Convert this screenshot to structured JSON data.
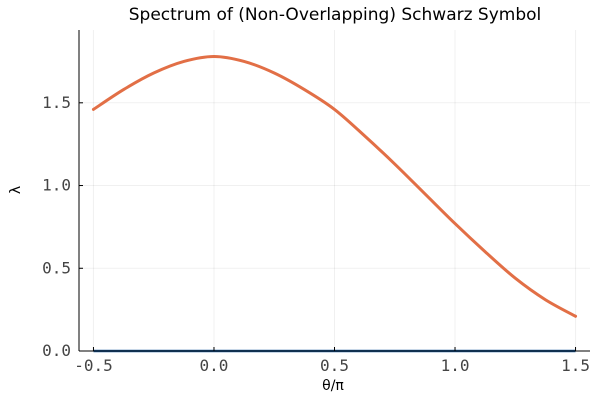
{
  "chart_data": {
    "type": "line",
    "title": "Spectrum of (Non-Overlapping) Schwarz Symbol",
    "xlabel": "θ/π",
    "ylabel": "λ",
    "xlim": [
      -0.56,
      1.56
    ],
    "ylim": [
      0.0,
      1.94
    ],
    "xticks": [
      -0.5,
      0.0,
      0.5,
      1.0,
      1.5
    ],
    "xtick_labels": [
      "-0.5",
      "0.0",
      "0.5",
      "1.0",
      "1.5"
    ],
    "yticks": [
      0.0,
      0.5,
      1.0,
      1.5
    ],
    "ytick_labels": [
      "0.0",
      "0.5",
      "1.0",
      "1.5"
    ],
    "grid": true,
    "legend": "none",
    "series": [
      {
        "color": "#e26f46",
        "x": [
          -0.5,
          -0.375,
          -0.25,
          -0.125,
          0.0,
          0.125,
          0.25,
          0.375,
          0.5,
          0.625,
          0.75,
          0.875,
          1.0,
          1.125,
          1.25,
          1.375,
          1.5
        ],
        "y": [
          1.46,
          1.58,
          1.68,
          1.75,
          1.78,
          1.75,
          1.68,
          1.58,
          1.46,
          1.3,
          1.13,
          0.95,
          0.77,
          0.6,
          0.44,
          0.31,
          0.21
        ]
      },
      {
        "color": "#1f5fa0",
        "x": [
          -0.5,
          1.5
        ],
        "y": [
          0.0,
          0.0
        ]
      }
    ]
  }
}
